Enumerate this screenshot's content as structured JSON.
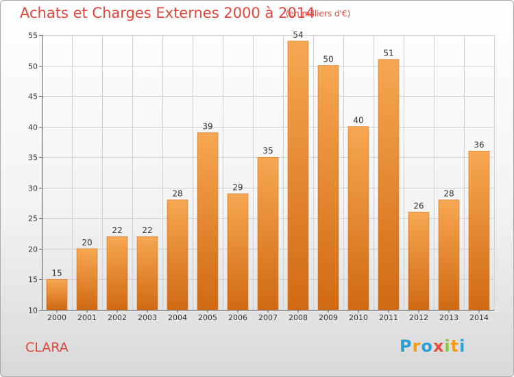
{
  "header": {
    "title": "Achats et Charges Externes 2000 à 2014",
    "subtitle": "(en milliers d'€)"
  },
  "footer": {
    "commune": "CLARA",
    "logo_letters": [
      "P",
      "r",
      "o",
      "x",
      "i",
      "t",
      "i"
    ],
    "logo_colors": [
      "#2a9fd6",
      "#f39c12",
      "#2a9fd6",
      "#e74c3c",
      "#8cc63f",
      "#f39c12",
      "#2a9fd6"
    ]
  },
  "chart_data": {
    "type": "bar",
    "title": "Achats et Charges Externes 2000 à 2014",
    "subtitle": "(en milliers d'€)",
    "categories": [
      "2000",
      "2001",
      "2002",
      "2003",
      "2004",
      "2005",
      "2006",
      "2007",
      "2008",
      "2009",
      "2010",
      "2011",
      "2012",
      "2013",
      "2014"
    ],
    "values": [
      15,
      20,
      22,
      22,
      28,
      39,
      29,
      35,
      54,
      50,
      40,
      51,
      26,
      28,
      36
    ],
    "ylim": [
      10,
      55
    ],
    "yticks": [
      10,
      15,
      20,
      25,
      30,
      35,
      40,
      45,
      50,
      55
    ],
    "grid": true,
    "bar_color_top": "#f7a752",
    "bar_color_bottom": "#d06a12"
  }
}
